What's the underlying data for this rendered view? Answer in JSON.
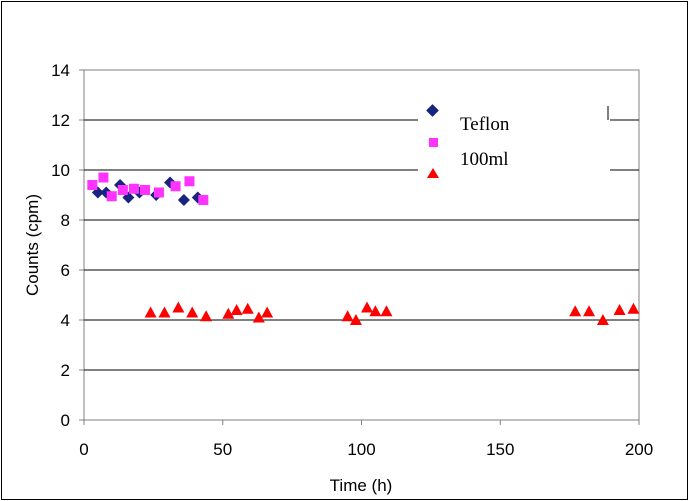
{
  "chart_data": {
    "type": "scatter",
    "title": "",
    "xlabel": "Time (h)",
    "ylabel": "Counts (cpm)",
    "xlim": [
      0,
      200
    ],
    "ylim": [
      0,
      14
    ],
    "xticks": [
      0,
      50,
      100,
      150,
      200
    ],
    "yticks": [
      0,
      2,
      4,
      6,
      8,
      10,
      12,
      14
    ],
    "grid": "horizontal",
    "legend_position": "top-right",
    "series": [
      {
        "name": "Teflon",
        "marker": "diamond",
        "color": "#1a237e",
        "points": [
          [
            5,
            9.1
          ],
          [
            8,
            9.1
          ],
          [
            13,
            9.4
          ],
          [
            16,
            8.9
          ],
          [
            20,
            9.1
          ],
          [
            26,
            9.0
          ],
          [
            31,
            9.5
          ],
          [
            36,
            8.8
          ],
          [
            41,
            8.9
          ]
        ]
      },
      {
        "name": "",
        "marker": "square",
        "color": "#ff33ff",
        "points": [
          [
            3,
            9.4
          ],
          [
            7,
            9.7
          ],
          [
            10,
            8.95
          ],
          [
            14,
            9.2
          ],
          [
            18,
            9.25
          ],
          [
            22,
            9.2
          ],
          [
            27,
            9.1
          ],
          [
            33,
            9.35
          ],
          [
            38,
            9.55
          ],
          [
            43,
            8.8
          ]
        ]
      },
      {
        "name": "100ml",
        "marker": "triangle",
        "color": "#ff0000",
        "points": [
          [
            24,
            4.3
          ],
          [
            29,
            4.3
          ],
          [
            34,
            4.5
          ],
          [
            39,
            4.3
          ],
          [
            44,
            4.15
          ],
          [
            52,
            4.25
          ],
          [
            55,
            4.4
          ],
          [
            59,
            4.45
          ],
          [
            63,
            4.1
          ],
          [
            66,
            4.3
          ],
          [
            95,
            4.15
          ],
          [
            98,
            4.0
          ],
          [
            102,
            4.5
          ],
          [
            105,
            4.35
          ],
          [
            109,
            4.35
          ],
          [
            177,
            4.35
          ],
          [
            182,
            4.35
          ],
          [
            187,
            4.0
          ],
          [
            193,
            4.4
          ],
          [
            198,
            4.45
          ]
        ]
      }
    ]
  }
}
